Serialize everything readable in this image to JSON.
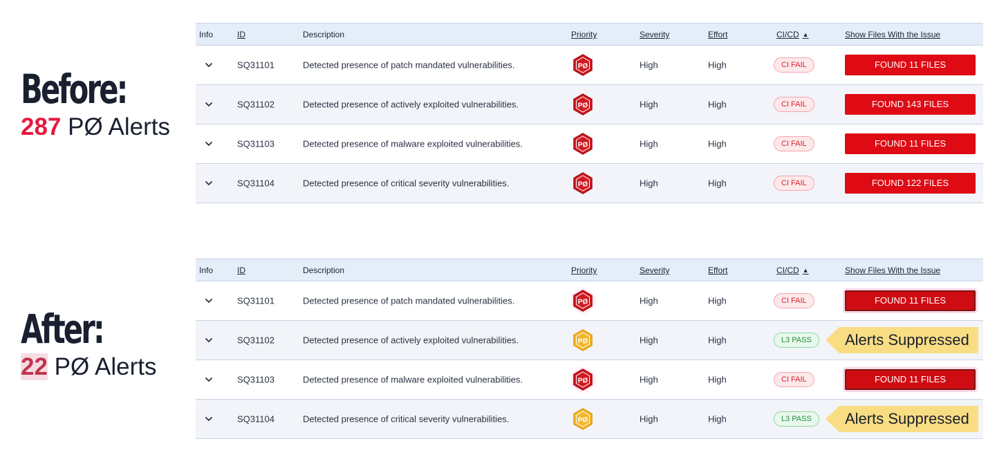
{
  "before": {
    "heading": "Before:",
    "count": "287",
    "count_suffix": " PØ Alerts"
  },
  "after": {
    "heading": "After:",
    "count": "22",
    "count_suffix": " PØ Alerts"
  },
  "columns": {
    "info": "Info",
    "id": "ID",
    "description": "Description",
    "priority": "Priority",
    "severity": "Severity",
    "effort": "Effort",
    "cicd": "CI/CD",
    "files": "Show Files With the Issue"
  },
  "colors": {
    "red_badge": "#d01a22",
    "amber_badge": "#f4b528",
    "files_button": "#de0a14",
    "accent_number": "#e5193f",
    "header_bg": "#e4edf8",
    "suppressed_tag": "#f9dd83"
  },
  "icons": {
    "expand": "chevron-down-icon",
    "priority": "hexagon-badge-icon",
    "sort": "sort-ascending-icon"
  },
  "before_rows": [
    {
      "id": "SQ31101",
      "description": "Detected presence of patch mandated vulnerabilities.",
      "priority": "PØ",
      "severity": "High",
      "effort": "High",
      "cicd": "CI FAIL",
      "files": "FOUND 11 FILES"
    },
    {
      "id": "SQ31102",
      "description": "Detected presence of actively exploited vulnerabilities.",
      "priority": "PØ",
      "severity": "High",
      "effort": "High",
      "cicd": "CI FAIL",
      "files": "FOUND 143 FILES"
    },
    {
      "id": "SQ31103",
      "description": "Detected presence of malware exploited vulnerabilities.",
      "priority": "PØ",
      "severity": "High",
      "effort": "High",
      "cicd": "CI FAIL",
      "files": "FOUND 11 FILES"
    },
    {
      "id": "SQ31104",
      "description": "Detected presence of critical severity vulnerabilities.",
      "priority": "PØ",
      "severity": "High",
      "effort": "High",
      "cicd": "CI FAIL",
      "files": "FOUND 122 FILES"
    }
  ],
  "after_rows": [
    {
      "id": "SQ31101",
      "description": "Detected presence of patch mandated vulnerabilities.",
      "priority": "PØ",
      "severity": "High",
      "effort": "High",
      "cicd": "CI FAIL",
      "files": "FOUND 11 FILES"
    },
    {
      "id": "SQ31102",
      "description": "Detected presence of actively exploited vulnerabilities.",
      "priority": "PØ",
      "severity": "High",
      "effort": "High",
      "cicd": "L3 PASS",
      "suppressed": "Alerts Suppressed"
    },
    {
      "id": "SQ31103",
      "description": "Detected presence of malware exploited vulnerabilities.",
      "priority": "PØ",
      "severity": "High",
      "effort": "High",
      "cicd": "CI FAIL",
      "files": "FOUND 11 FILES"
    },
    {
      "id": "SQ31104",
      "description": "Detected presence of critical severity vulnerabilities.",
      "priority": "PØ",
      "severity": "High",
      "effort": "High",
      "cicd": "L3 PASS",
      "suppressed": "Alerts Suppressed"
    }
  ]
}
